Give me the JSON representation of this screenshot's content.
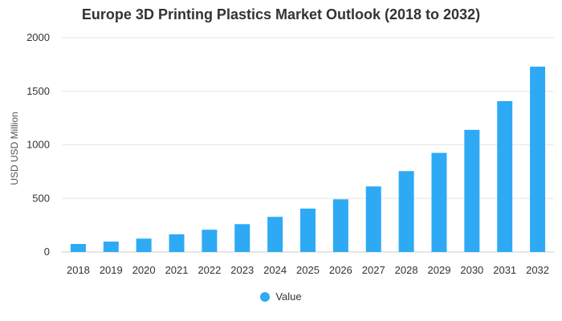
{
  "chart_data": {
    "type": "bar",
    "title": "Europe 3D Printing Plastics Market Outlook (2018 to 2032)",
    "xlabel": "",
    "ylabel": "USD USD Million",
    "categories": [
      "2018",
      "2019",
      "2020",
      "2021",
      "2022",
      "2023",
      "2024",
      "2025",
      "2026",
      "2027",
      "2028",
      "2029",
      "2030",
      "2031",
      "2032"
    ],
    "series": [
      {
        "name": "Value",
        "color": "#2eaaf5",
        "values": [
          75,
          97,
          125,
          165,
          208,
          260,
          328,
          405,
          492,
          612,
          755,
          925,
          1140,
          1408,
          1730
        ]
      }
    ],
    "ylim": [
      0,
      2000
    ],
    "yticks": [
      0,
      500,
      1000,
      1500,
      2000
    ],
    "grid": true,
    "legend": "bottom-center"
  }
}
